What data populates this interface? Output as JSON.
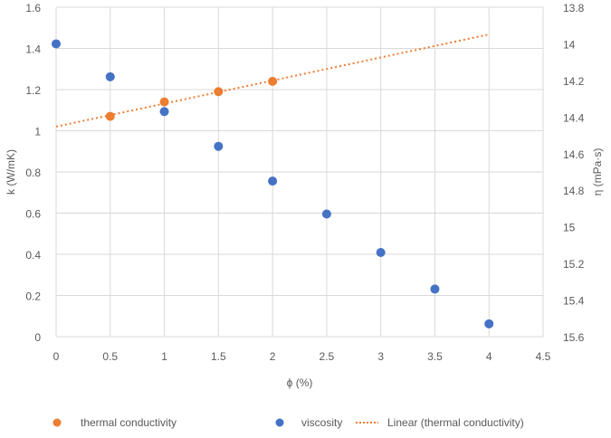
{
  "chart_data": {
    "type": "scatter",
    "xlabel": "ϕ (%)",
    "ylabel": "k (W/mK)",
    "y2label": "η (mPa·s)",
    "xlim": [
      0,
      4.5
    ],
    "ylim": [
      0,
      1.6
    ],
    "y2lim": [
      13.8,
      15.6
    ],
    "y2_reversed": true,
    "x_ticks": [
      "0",
      "0.5",
      "1",
      "1.5",
      "2",
      "2.5",
      "3",
      "3.5",
      "4",
      "4.5"
    ],
    "y_ticks": [
      "0",
      "0.2",
      "0.4",
      "0.6",
      "0.8",
      "1",
      "1.2",
      "1.4",
      "1.6"
    ],
    "y2_ticks": [
      "13.8",
      "14",
      "14.2",
      "14.4",
      "14.6",
      "14.8",
      "15",
      "15.2",
      "15.4",
      "15.6"
    ],
    "grid": true,
    "legend_position": "bottom",
    "series": [
      {
        "name": "thermal conductivity",
        "axis": "left",
        "color": "#ED7D31",
        "x": [
          0.5,
          1,
          1.5,
          2
        ],
        "y": [
          1.07,
          1.14,
          1.19,
          1.24
        ]
      },
      {
        "name": "viscosity",
        "axis": "right",
        "color": "#4472C4",
        "x": [
          0,
          0.5,
          1,
          1.5,
          2,
          2.5,
          3,
          3.5,
          4
        ],
        "y": [
          14.0,
          14.18,
          14.37,
          14.56,
          14.75,
          14.93,
          15.14,
          15.34,
          15.53
        ]
      }
    ],
    "trendline": {
      "name": "Linear (thermal conductivity)",
      "color": "#ED7D31",
      "x_range": [
        0,
        4
      ],
      "slope": 0.112,
      "intercept": 1.02,
      "style": "dotted"
    }
  }
}
